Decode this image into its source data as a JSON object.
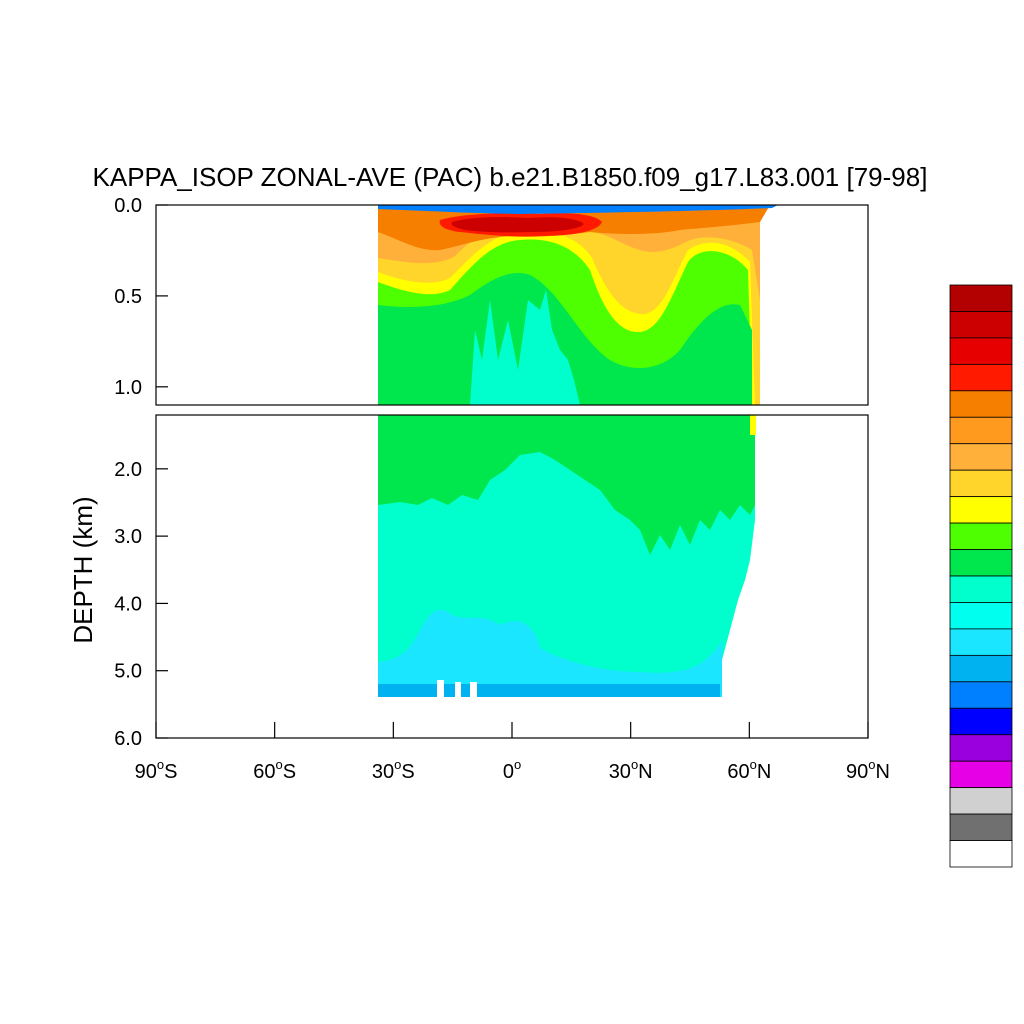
{
  "chart_data": {
    "type": "heatmap",
    "title": "KAPPA_ISOP ZONAL-AVE (PAC) b.e21.B1850.f09_g17.L83.001 [79-98]",
    "ylabel": "DEPTH (km)",
    "xlabel": "",
    "x_ticks": [
      {
        "value": -90,
        "num": "90",
        "hemi": "S"
      },
      {
        "value": -60,
        "num": "60",
        "hemi": "S"
      },
      {
        "value": -30,
        "num": "30",
        "hemi": "S"
      },
      {
        "value": 0,
        "num": "0",
        "hemi": ""
      },
      {
        "value": 30,
        "num": "30",
        "hemi": "N"
      },
      {
        "value": 60,
        "num": "60",
        "hemi": "N"
      },
      {
        "value": 90,
        "num": "90",
        "hemi": "N"
      }
    ],
    "xlim": [
      -90,
      90
    ],
    "upper_panel": {
      "ylim": [
        0.0,
        1.1
      ],
      "y_ticks": [
        "0.0",
        "0.5",
        "1.0"
      ],
      "y_values": [
        0.0,
        0.5,
        1.0
      ]
    },
    "lower_panel": {
      "ylim": [
        1.2,
        6.0
      ],
      "y_ticks": [
        "2.0",
        "3.0",
        "4.0",
        "5.0",
        "6.0"
      ],
      "y_values": [
        2.0,
        3.0,
        4.0,
        5.0,
        6.0
      ]
    },
    "data_extent": {
      "lat_min": -34,
      "lat_max": 66,
      "max_depth_km": 5.4
    },
    "colorbar": {
      "placement": "right",
      "levels": [
        "#b30000",
        "#cc0000",
        "#e60000",
        "#ff1a00",
        "#f77f00",
        "#ff9a1f",
        "#ffb03b",
        "#ffd42b",
        "#ffff00",
        "#4dff00",
        "#00e64d",
        "#00ffcc",
        "#00ffee",
        "#1ae6ff",
        "#00b3f0",
        "#0080ff",
        "#0000ff",
        "#9900dd",
        "#e600e6",
        "#d0d0d0",
        "#707070",
        "#ffffff"
      ]
    },
    "grid": false
  }
}
